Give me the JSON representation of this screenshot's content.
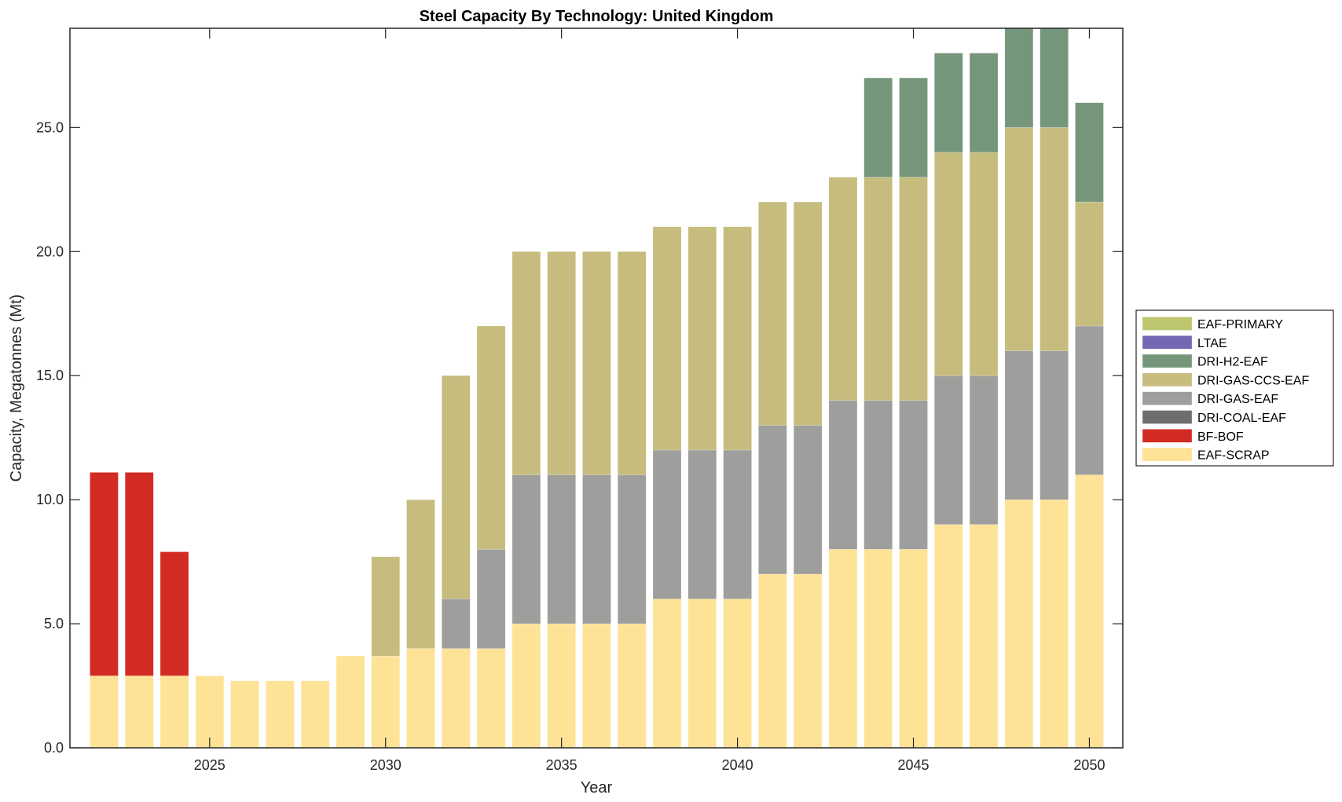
{
  "chart_data": {
    "type": "bar",
    "stacked": true,
    "title": "Steel Capacity By Technology: United Kingdom",
    "xlabel": "Year",
    "ylabel": "Capacity, Megatonnes (Mt)",
    "ylim": [
      0,
      29
    ],
    "xlim": [
      2021.03,
      2050.95
    ],
    "grid": false,
    "legend_position": "outside-right",
    "x_ticks": [
      2025,
      2030,
      2035,
      2040,
      2045,
      2050
    ],
    "x_tick_labels": [
      "2025",
      "2030",
      "2035",
      "2040",
      "2045",
      "2050"
    ],
    "y_ticks": [
      0,
      5,
      10,
      15,
      20,
      25
    ],
    "y_tick_labels": [
      "0.0",
      "5.0",
      "10.0",
      "15.0",
      "20.0",
      "25.0"
    ],
    "categories": [
      2022,
      2023,
      2024,
      2025,
      2026,
      2027,
      2028,
      2029,
      2030,
      2031,
      2032,
      2033,
      2034,
      2035,
      2036,
      2037,
      2038,
      2039,
      2040,
      2041,
      2042,
      2043,
      2044,
      2045,
      2046,
      2047,
      2048,
      2049,
      2050
    ],
    "series": [
      {
        "name": "EAF-SCRAP",
        "color": "#FEE396",
        "values": [
          2.9,
          2.9,
          2.9,
          2.9,
          2.7,
          2.7,
          2.7,
          3.7,
          3.7,
          4,
          4,
          4,
          5,
          5,
          5,
          5,
          6,
          6,
          6,
          7,
          7,
          8,
          8,
          8,
          9,
          9,
          10,
          10,
          11
        ]
      },
      {
        "name": "BF-BOF",
        "color": "#D22B24",
        "values": [
          8.2,
          8.2,
          5.0,
          0,
          0,
          0,
          0,
          0,
          0,
          0,
          0,
          0,
          0,
          0,
          0,
          0,
          0,
          0,
          0,
          0,
          0,
          0,
          0,
          0,
          0,
          0,
          0,
          0,
          0
        ]
      },
      {
        "name": "DRI-COAL-EAF",
        "color": "#6E6E6E",
        "values": [
          0,
          0,
          0,
          0,
          0,
          0,
          0,
          0,
          0,
          0,
          0,
          0,
          0,
          0,
          0,
          0,
          0,
          0,
          0,
          0,
          0,
          0,
          0,
          0,
          0,
          0,
          0,
          0,
          0
        ]
      },
      {
        "name": "DRI-GAS-EAF",
        "color": "#9E9E9C",
        "values": [
          0,
          0,
          0,
          0,
          0,
          0,
          0,
          0,
          0,
          0,
          2,
          4,
          6,
          6,
          6,
          6,
          6,
          6,
          6,
          6,
          6,
          6,
          6,
          6,
          6,
          6,
          6,
          6,
          6
        ]
      },
      {
        "name": "DRI-GAS-CCS-EAF",
        "color": "#C6BC7E",
        "values": [
          0,
          0,
          0,
          0,
          0,
          0,
          0,
          0,
          4,
          6,
          9,
          9,
          9,
          9,
          9,
          9,
          9,
          9,
          9,
          9,
          9,
          9,
          9,
          9,
          9,
          9,
          9,
          9,
          5
        ]
      },
      {
        "name": "DRI-H2-EAF",
        "color": "#76967C",
        "values": [
          0,
          0,
          0,
          0,
          0,
          0,
          0,
          0,
          0,
          0,
          0,
          0,
          0,
          0,
          0,
          0,
          0,
          0,
          0,
          0,
          0,
          0,
          4,
          4,
          4,
          4,
          4,
          4,
          4
        ]
      },
      {
        "name": "LTAE",
        "color": "#7468B5",
        "values": [
          0,
          0,
          0,
          0,
          0,
          0,
          0,
          0,
          0,
          0,
          0,
          0,
          0,
          0,
          0,
          0,
          0,
          0,
          0,
          0,
          0,
          0,
          0,
          0,
          0,
          0,
          0,
          0,
          0
        ]
      },
      {
        "name": "EAF-PRIMARY",
        "color": "#BEC66E",
        "values": [
          0,
          0,
          0,
          0,
          0,
          0,
          0,
          0,
          0,
          0,
          0,
          0,
          0,
          0,
          0,
          0,
          0,
          0,
          0,
          0,
          0,
          0,
          0,
          0,
          0,
          0,
          0,
          0,
          0
        ]
      }
    ],
    "legend_order": [
      "EAF-PRIMARY",
      "LTAE",
      "DRI-H2-EAF",
      "DRI-GAS-CCS-EAF",
      "DRI-GAS-EAF",
      "DRI-COAL-EAF",
      "BF-BOF",
      "EAF-SCRAP"
    ]
  }
}
